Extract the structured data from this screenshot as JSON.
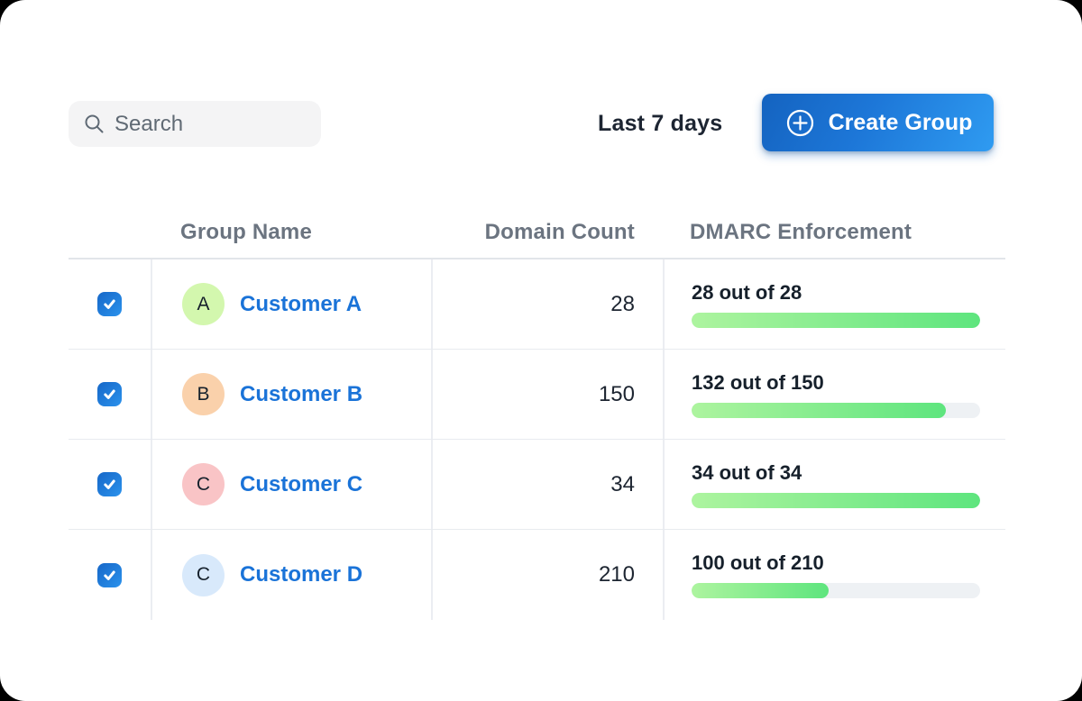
{
  "toolbar": {
    "search": {
      "placeholder": "Search"
    },
    "date_range_label": "Last 7 days",
    "create_group_label": "Create Group"
  },
  "colors": {
    "accent_blue": "#1a73d8",
    "button_gradient_start": "#1463c0",
    "button_gradient_end": "#2f9bf1",
    "progress_fill_start": "#adf49f",
    "progress_fill_end": "#5ee57e",
    "progress_track": "#eef1f4"
  },
  "icons": {
    "search": "search-icon",
    "create_group": "plus-circle-icon",
    "checkbox": "checkmark-icon"
  },
  "table": {
    "columns": [
      {
        "key": "select",
        "label": ""
      },
      {
        "key": "group_name",
        "label": "Group Name"
      },
      {
        "key": "domain_count",
        "label": "Domain Count"
      },
      {
        "key": "dmarc_enforcement",
        "label": "DMARC Enforcement"
      }
    ],
    "rows": [
      {
        "selected": true,
        "avatar_letter": "A",
        "avatar_color": "#d3f7ae",
        "group_name": "Customer A",
        "domain_count": "28",
        "dmarc_label": "28 out of 28",
        "enforced": 28,
        "total": 28,
        "pct": 100
      },
      {
        "selected": true,
        "avatar_letter": "B",
        "avatar_color": "#fad1ab",
        "group_name": "Customer B",
        "domain_count": "150",
        "dmarc_label": "132 out of 150",
        "enforced": 132,
        "total": 150,
        "pct": 88
      },
      {
        "selected": true,
        "avatar_letter": "C",
        "avatar_color": "#f9c4c6",
        "group_name": "Customer C",
        "domain_count": "34",
        "dmarc_label": "34 out of 34",
        "enforced": 34,
        "total": 34,
        "pct": 100
      },
      {
        "selected": true,
        "avatar_letter": "C",
        "avatar_color": "#d8e9fb",
        "group_name": "Customer D",
        "domain_count": "210",
        "dmarc_label": "100 out of 210",
        "enforced": 100,
        "total": 210,
        "pct": 47.6
      }
    ]
  }
}
